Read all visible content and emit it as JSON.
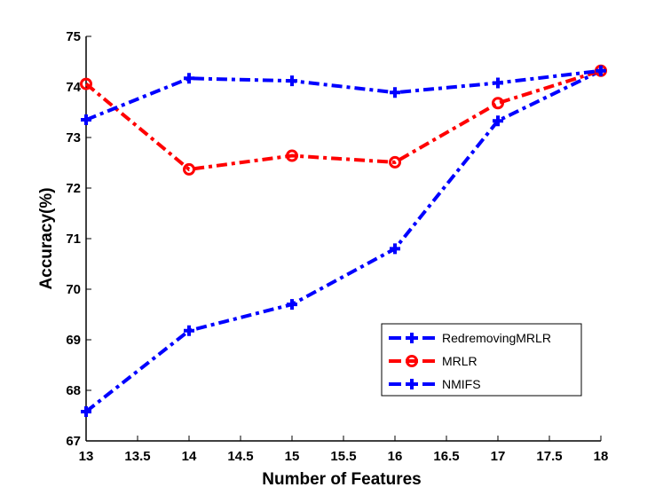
{
  "chart_data": {
    "type": "line",
    "title": "",
    "xlabel": "Number of Features",
    "ylabel": "Accuracy(%)",
    "xlim": [
      13,
      18
    ],
    "ylim": [
      67,
      75
    ],
    "xticks": [
      "13",
      "13.5",
      "14",
      "14.5",
      "15",
      "15.5",
      "16",
      "16.5",
      "17",
      "17.5",
      "18"
    ],
    "yticks": [
      "67",
      "68",
      "69",
      "70",
      "71",
      "72",
      "73",
      "74",
      "75"
    ],
    "grid": false,
    "legend_position": "lower-right",
    "x": [
      13,
      14,
      15,
      16,
      17,
      18
    ],
    "series": [
      {
        "name": "RedremovingMRLR",
        "color": "#0000FF",
        "marker": "plus",
        "linestyle": "dash-dot",
        "values": [
          73.35,
          74.17,
          74.12,
          73.89,
          74.08,
          74.32
        ]
      },
      {
        "name": "MRLR",
        "color": "#FF0000",
        "marker": "circle",
        "linestyle": "dash-dot",
        "values": [
          74.06,
          72.37,
          72.64,
          72.51,
          73.68,
          74.32
        ]
      },
      {
        "name": "NMIFS",
        "color": "#0000FF",
        "marker": "plus",
        "linestyle": "dash-dot",
        "values": [
          67.58,
          69.18,
          69.7,
          70.8,
          73.33,
          74.32
        ]
      }
    ]
  }
}
